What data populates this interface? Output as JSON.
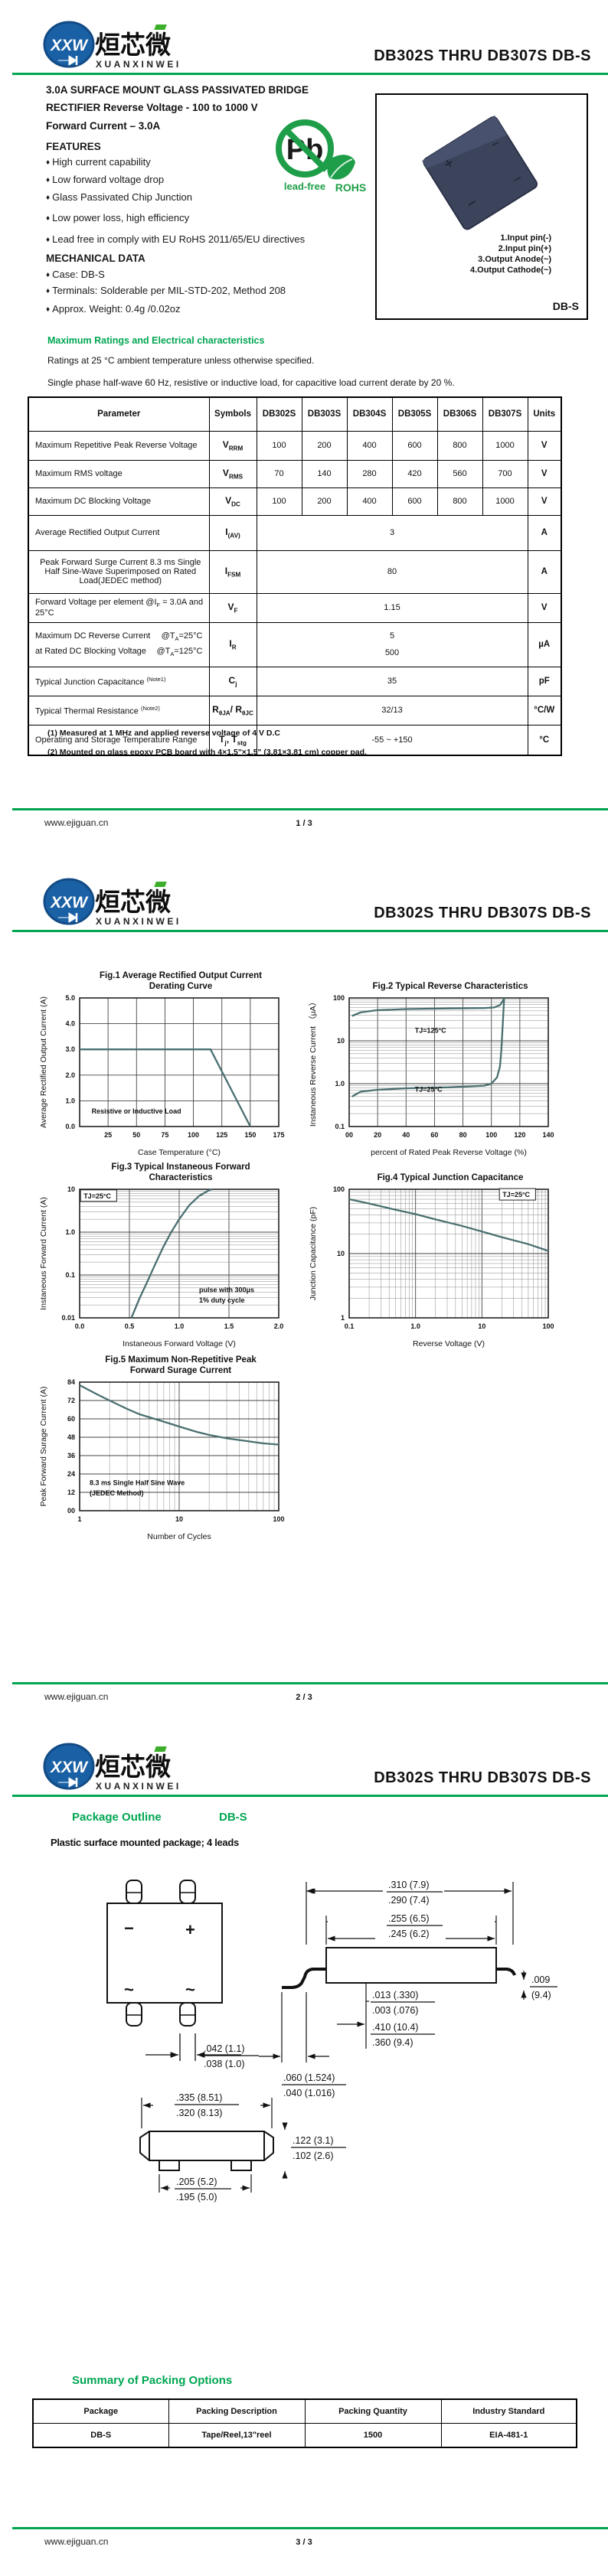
{
  "colors": {
    "accent_green": "#00A651",
    "logo_blue": "#1A60A5",
    "curve": "#4A6F70"
  },
  "header": {
    "monogram": "XXW",
    "brand_cn": "烜芯微",
    "brand_en": "XUANXINWEI",
    "title": "DB302S THRU DB307S  DB-S"
  },
  "footer": {
    "site": "www.ejiguan.cn",
    "p1": "1 / 3",
    "p2": "2 / 3",
    "p3": "3 / 3"
  },
  "page1": {
    "bullet": "♦",
    "headline1": "3.0A SURFACE MOUNT GLASS PASSIVATED BRIDGE",
    "headline2": "RECTIFIER Reverse Voltage - 100 to 1000 V",
    "headline3": "Forward Current – 3.0A",
    "features_title": "FEATURES",
    "features": [
      "High current capability",
      "Low forward voltage drop",
      "Glass Passivated Chip Junction",
      "Low power loss, high efficiency",
      "Lead free in comply with EU RoHS 2011/65/EU directives"
    ],
    "mech_title": "MECHANICAL DATA",
    "mech": [
      "Case: DB-S",
      "Terminals: Solderable per MIL-STD-202,  Method 208",
      "Approx. Weight: 0.4g /0.02oz"
    ],
    "pb": {
      "symbol": "Pb",
      "lead_free": "lead-free",
      "rohs": "ROHS"
    },
    "box": {
      "pins": [
        "1.Input pin(-)",
        "2.Input pin(+)",
        "3.Output Anode(~)",
        "4.Output Cathode(~)"
      ],
      "case_label": "DB-S",
      "mark_plus": "+",
      "mark_minus": "−",
      "mark_ac": "~"
    },
    "ratings": {
      "title": "Maximum Ratings and Electrical characteristics",
      "intro1": "Ratings at 25 °C ambient temperature unless otherwise specified.",
      "intro2": "Single phase half-wave 60 Hz, resistive or inductive load, for capacitive load current derate by 20 %.",
      "columns": [
        "Parameter",
        "Symbols",
        "DB302S",
        "DB303S",
        "DB304S",
        "DB305S",
        "DB306S",
        "DB307S",
        "Units"
      ],
      "rows": [
        {
          "param": "Maximum Repetitive Peak Reverse Voltage",
          "symbol": "V~RRM~",
          "values": [
            "100",
            "200",
            "400",
            "600",
            "800",
            "1000"
          ],
          "unit": "V"
        },
        {
          "param": "Maximum RMS voltage",
          "symbol": "V~RMS~",
          "values": [
            "70",
            "140",
            "280",
            "420",
            "560",
            "700"
          ],
          "unit": "V"
        },
        {
          "param": "Maximum DC Blocking Voltage",
          "symbol": "V~DC~",
          "values": [
            "100",
            "200",
            "400",
            "600",
            "800",
            "1000"
          ],
          "unit": "V"
        },
        {
          "param": "Average Rectified Output Current",
          "symbol": "I~(AV)~",
          "span": "3",
          "unit": "A"
        },
        {
          "param": "Peak Forward Surge Current 8.3 ms Single Half Sine-Wave Superimposed on Rated Load(JEDEC method)",
          "symbol": "I~FSM~",
          "span": "80",
          "unit": "A"
        },
        {
          "param": "Forward Voltage per element  @I~F~ = 3.0A and 25°C",
          "symbol": "V~F~",
          "span": "1.15",
          "unit": "V"
        },
        {
          "param_a": "Maximum DC Reverse Current",
          "cond_a": "@T~A~=25°C",
          "param_b": "at Rated DC Blocking Voltage",
          "cond_b": "@T~A~=125°C",
          "symbol": "I~R~",
          "span_a": "5",
          "span_b": "500",
          "unit": "µA"
        },
        {
          "param": "Typical Junction Capacitance ^(Note1)^",
          "symbol": "C~j~",
          "span": "35",
          "unit": "pF"
        },
        {
          "param": "Typical Thermal Resistance ^(Note2)^",
          "symbol": "R~θJA~/ R~θJC~",
          "span": "32/13",
          "unit": "°C/W"
        },
        {
          "param": "Operating and Storage Temperature Range",
          "symbol": "T~j~, T~stg~",
          "span": "-55 ~ +150",
          "unit": "°C"
        }
      ]
    },
    "footnotes": [
      "(1) Measured at 1 MHz and applied reverse voltage of 4 V D.C",
      "(2) Mounted on glass epoxy PCB board with 4×1.5\"×1.5\"  (3.81×3.81 cm)  copper pad."
    ]
  },
  "page2": {
    "charts": [
      {
        "id": "fig1",
        "title": "Fig.1  Average Rectified Output Current",
        "title2": "Derating Curve",
        "type": "line",
        "xscale": "linear",
        "yscale": "linear",
        "xmin": 0,
        "xmax": 175,
        "ymin": 0,
        "ymax": 5,
        "xticks": [
          {
            "v": 25,
            "l": "25"
          },
          {
            "v": 50,
            "l": "50"
          },
          {
            "v": 75,
            "l": "75"
          },
          {
            "v": 100,
            "l": "100"
          },
          {
            "v": 125,
            "l": "125"
          },
          {
            "v": 150,
            "l": "150"
          },
          {
            "v": 175,
            "l": "175"
          }
        ],
        "yticks": [
          {
            "v": 0,
            "l": "0.0"
          },
          {
            "v": 1,
            "l": "1.0"
          },
          {
            "v": 2,
            "l": "2.0"
          },
          {
            "v": 3,
            "l": "3.0"
          },
          {
            "v": 4,
            "l": "4.0"
          },
          {
            "v": 5,
            "l": "5.0"
          }
        ],
        "xlabel": "Case Temperature (°C)",
        "ylabel": "Average Rectified Output Current (A)",
        "series": [
          {
            "name": "derating",
            "points": [
              [
                0,
                3
              ],
              [
                115,
                3
              ],
              [
                150,
                0
              ]
            ]
          }
        ],
        "annotations": [
          {
            "text": "Resistive or Inductive Load",
            "fx": 0.06,
            "fy": 0.9
          }
        ]
      },
      {
        "id": "fig2",
        "title": "Fig.2  Typical Reverse Characteristics",
        "title2": "",
        "type": "line",
        "xscale": "linear",
        "yscale": "log",
        "xmin": 0,
        "xmax": 140,
        "ymin": 0.1,
        "ymax": 100,
        "xticks": [
          {
            "v": 0,
            "l": "00"
          },
          {
            "v": 20,
            "l": "20"
          },
          {
            "v": 40,
            "l": "40"
          },
          {
            "v": 60,
            "l": "60"
          },
          {
            "v": 80,
            "l": "80"
          },
          {
            "v": 100,
            "l": "100"
          },
          {
            "v": 120,
            "l": "120"
          },
          {
            "v": 140,
            "l": "140"
          }
        ],
        "yticks": [
          {
            "v": 0.1,
            "l": "0.1"
          },
          {
            "v": 1,
            "l": "1.0"
          },
          {
            "v": 10,
            "l": "10"
          },
          {
            "v": 100,
            "l": "100"
          }
        ],
        "xlabel": "percent of Rated Peak Reverse Voltage (%)",
        "ylabel": "Instaneous Reverse Current （μA）",
        "series": [
          {
            "name": "TJ=125C",
            "points": [
              [
                2,
                38
              ],
              [
                8,
                46
              ],
              [
                20,
                52
              ],
              [
                40,
                55
              ],
              [
                70,
                57
              ],
              [
                95,
                58
              ],
              [
                102,
                60
              ],
              [
                106,
                68
              ],
              [
                108,
                85
              ],
              [
                109,
                100
              ]
            ]
          },
          {
            "name": "TJ=25C",
            "points": [
              [
                2,
                0.5
              ],
              [
                8,
                0.65
              ],
              [
                20,
                0.72
              ],
              [
                40,
                0.78
              ],
              [
                70,
                0.82
              ],
              [
                95,
                0.9
              ],
              [
                100,
                1.0
              ],
              [
                104,
                1.4
              ],
              [
                106,
                2.5
              ],
              [
                107,
                6
              ],
              [
                108,
                25
              ],
              [
                109,
                100
              ]
            ]
          }
        ],
        "annotations": [
          {
            "text": "TJ=125°C",
            "fx": 0.33,
            "fy": 0.27
          },
          {
            "text": "TJ=25°C",
            "fx": 0.33,
            "fy": 0.73
          }
        ]
      },
      {
        "id": "fig3",
        "title": "Fig.3  Typical Instaneous Forward",
        "title2": "Characteristics",
        "type": "line",
        "xscale": "linear",
        "yscale": "log",
        "xmin": 0,
        "xmax": 2,
        "ymin": 0.01,
        "ymax": 10,
        "xticks": [
          {
            "v": 0,
            "l": "0.0"
          },
          {
            "v": 0.5,
            "l": "0.5"
          },
          {
            "v": 1,
            "l": "1.0"
          },
          {
            "v": 1.5,
            "l": "1.5"
          },
          {
            "v": 2,
            "l": "2.0"
          }
        ],
        "yticks": [
          {
            "v": 0.01,
            "l": "0.01"
          },
          {
            "v": 0.1,
            "l": "0.1"
          },
          {
            "v": 1,
            "l": "1.0"
          },
          {
            "v": 10,
            "l": "10"
          }
        ],
        "xlabel": "Instaneous Forward Voltage (V)",
        "ylabel": "Instaneous Forward Current (A)",
        "series": [
          {
            "name": "VF",
            "points": [
              [
                0.52,
                0.01
              ],
              [
                0.6,
                0.028
              ],
              [
                0.68,
                0.07
              ],
              [
                0.76,
                0.18
              ],
              [
                0.84,
                0.45
              ],
              [
                0.92,
                1.0
              ],
              [
                1.0,
                2.0
              ],
              [
                1.1,
                4.2
              ],
              [
                1.2,
                7
              ],
              [
                1.3,
                9.5
              ],
              [
                1.33,
                10
              ]
            ]
          }
        ],
        "annotations": [
          {
            "text": "TJ=25°C",
            "fx": 0.02,
            "fy": 0.07,
            "box": true
          },
          {
            "text": "pulse with 300μs",
            "fx": 0.6,
            "fy": 0.8
          },
          {
            "text": "1% duty cycle",
            "fx": 0.6,
            "fy": 0.88
          }
        ]
      },
      {
        "id": "fig4",
        "title": "Fig.4  Typical Junction Capacitance",
        "title2": "",
        "type": "line",
        "xscale": "log",
        "yscale": "log",
        "xmin": 0.1,
        "xmax": 100,
        "ymin": 1,
        "ymax": 100,
        "xticks": [
          {
            "v": 0.1,
            "l": "0.1"
          },
          {
            "v": 1,
            "l": "1.0"
          },
          {
            "v": 10,
            "l": "10"
          },
          {
            "v": 100,
            "l": "100"
          }
        ],
        "yticks": [
          {
            "v": 1,
            "l": "1"
          },
          {
            "v": 10,
            "l": "10"
          },
          {
            "v": 100,
            "l": "100"
          }
        ],
        "xlabel": "Reverse  Voltage (V)",
        "ylabel": "Junction Capacitance (pF)",
        "series": [
          {
            "name": "Cj",
            "points": [
              [
                0.1,
                70
              ],
              [
                0.2,
                60
              ],
              [
                0.5,
                48
              ],
              [
                1,
                41
              ],
              [
                2,
                34
              ],
              [
                5,
                27
              ],
              [
                10,
                22
              ],
              [
                20,
                18
              ],
              [
                50,
                14
              ],
              [
                100,
                11
              ]
            ]
          }
        ],
        "annotations": [
          {
            "text": "TJ=25°C",
            "fx": 0.77,
            "fy": 0.06,
            "box": true
          }
        ]
      },
      {
        "id": "fig5",
        "title": "Fig.5  Maximum Non-Repetitive Peak",
        "title2": "Forward Surage Current",
        "type": "line",
        "xscale": "log",
        "yscale": "linear",
        "xmin": 1,
        "xmax": 100,
        "ymin": 0,
        "ymax": 84,
        "xticks": [
          {
            "v": 1,
            "l": "1"
          },
          {
            "v": 10,
            "l": "10"
          },
          {
            "v": 100,
            "l": "100"
          }
        ],
        "yticks": [
          {
            "v": 0,
            "l": "00"
          },
          {
            "v": 12,
            "l": "12"
          },
          {
            "v": 24,
            "l": "24"
          },
          {
            "v": 36,
            "l": "36"
          },
          {
            "v": 48,
            "l": "48"
          },
          {
            "v": 60,
            "l": "60"
          },
          {
            "v": 72,
            "l": "72"
          },
          {
            "v": 84,
            "l": "84"
          }
        ],
        "xlabel": "Number of Cycles",
        "ylabel": "Peak Forward Surage Current (A)",
        "series": [
          {
            "name": "IFSM",
            "points": [
              [
                1,
                82
              ],
              [
                1.5,
                76
              ],
              [
                2,
                72
              ],
              [
                3,
                66.5
              ],
              [
                4,
                63
              ],
              [
                6,
                59.5
              ],
              [
                8,
                57
              ],
              [
                10,
                55
              ],
              [
                15,
                51.5
              ],
              [
                20,
                49.5
              ],
              [
                30,
                47.3
              ],
              [
                50,
                45.3
              ],
              [
                70,
                44
              ],
              [
                100,
                43.2
              ]
            ]
          }
        ],
        "annotations": [
          {
            "text": "8.3 ms Single Half Sine Wave",
            "fx": 0.05,
            "fy": 0.8
          },
          {
            "text": "(JEDEC Method)",
            "fx": 0.05,
            "fy": 0.88
          }
        ]
      }
    ]
  },
  "page3": {
    "outline_title": "Package Outline",
    "outline_case": "DB-S",
    "outline_sub": "Plastic surface mounted package; 4 leads",
    "dims": {
      "d1a": ".310 (7.9)",
      "d1b": ".290 (7.4)",
      "d2a": ".255 (6.5)",
      "d2b": ".245 (6.2)",
      "d3a": ".013 (.330)",
      "d3b": ".003 (.076)",
      "d4a": ".410 (10.4)",
      "d4b": ".360 (9.4)",
      "d5a": ".009",
      "d5b": "(9.4)",
      "d6a": ".060 (1.524)",
      "d6b": ".040 (1.016)",
      "d7a": ".042 (1.1)",
      "d7b": ".038 (1.0)",
      "d8a": ".335 (8.51)",
      "d8b": ".320 (8.13)",
      "d9a": ".122 (3.1)",
      "d9b": ".102 (2.6)",
      "d10a": ".205 (5.2)",
      "d10b": ".195 (5.0)"
    },
    "packing": {
      "title": "Summary of Packing Options",
      "columns": [
        "Package",
        "Packing Description",
        "Packing Quantity",
        "Industry Standard"
      ],
      "rows": [
        [
          "DB-S",
          "Tape/Reel,13\"reel",
          "1500",
          "EIA-481-1"
        ]
      ]
    }
  }
}
